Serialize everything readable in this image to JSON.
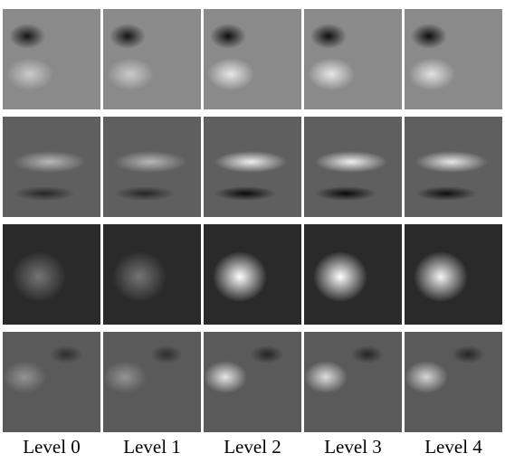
{
  "columns": [
    {
      "label": "Level 0"
    },
    {
      "label": "Level 1"
    },
    {
      "label": "Level 2"
    },
    {
      "label": "Level 3"
    },
    {
      "label": "Level 4"
    }
  ],
  "rows": [
    {
      "background": "#8a8a8a",
      "blobs_per_column": [
        [
          {
            "kind": "dark",
            "strength": 0.85
          },
          {
            "kind": "light",
            "strength": 0.55
          }
        ],
        [
          {
            "kind": "dark",
            "strength": 0.85
          },
          {
            "kind": "light",
            "strength": 0.55
          }
        ],
        [
          {
            "kind": "dark",
            "strength": 0.9
          },
          {
            "kind": "light",
            "strength": 0.8
          }
        ],
        [
          {
            "kind": "dark",
            "strength": 0.9
          },
          {
            "kind": "light",
            "strength": 0.8
          }
        ],
        [
          {
            "kind": "dark",
            "strength": 0.9
          },
          {
            "kind": "light",
            "strength": 0.75
          }
        ]
      ]
    },
    {
      "background": "#5f5f5f",
      "blobs_per_column": [
        [
          {
            "kind": "light",
            "strength": 0.55
          },
          {
            "kind": "dark",
            "strength": 0.6
          }
        ],
        [
          {
            "kind": "light",
            "strength": 0.55
          },
          {
            "kind": "dark",
            "strength": 0.6
          }
        ],
        [
          {
            "kind": "light",
            "strength": 0.9
          },
          {
            "kind": "dark",
            "strength": 0.9
          }
        ],
        [
          {
            "kind": "light",
            "strength": 0.9
          },
          {
            "kind": "dark",
            "strength": 0.9
          }
        ],
        [
          {
            "kind": "light",
            "strength": 0.85
          },
          {
            "kind": "dark",
            "strength": 0.85
          }
        ]
      ]
    },
    {
      "background": "#2a2a2a",
      "blobs_per_column": [
        [
          {
            "kind": "light",
            "strength": 0.35
          }
        ],
        [
          {
            "kind": "light",
            "strength": 0.35
          }
        ],
        [
          {
            "kind": "light",
            "strength": 1.0
          }
        ],
        [
          {
            "kind": "light",
            "strength": 1.0
          }
        ],
        [
          {
            "kind": "light",
            "strength": 0.95
          }
        ]
      ]
    },
    {
      "background": "#5a5a5a",
      "blobs_per_column": [
        [
          {
            "kind": "light",
            "strength": 0.35
          },
          {
            "kind": "dark",
            "strength": 0.5
          }
        ],
        [
          {
            "kind": "light",
            "strength": 0.35
          },
          {
            "kind": "dark",
            "strength": 0.5
          }
        ],
        [
          {
            "kind": "light",
            "strength": 0.85
          },
          {
            "kind": "dark",
            "strength": 0.6
          }
        ],
        [
          {
            "kind": "light",
            "strength": 0.8
          },
          {
            "kind": "dark",
            "strength": 0.6
          }
        ],
        [
          {
            "kind": "light",
            "strength": 0.75
          },
          {
            "kind": "dark",
            "strength": 0.6
          }
        ]
      ]
    }
  ]
}
